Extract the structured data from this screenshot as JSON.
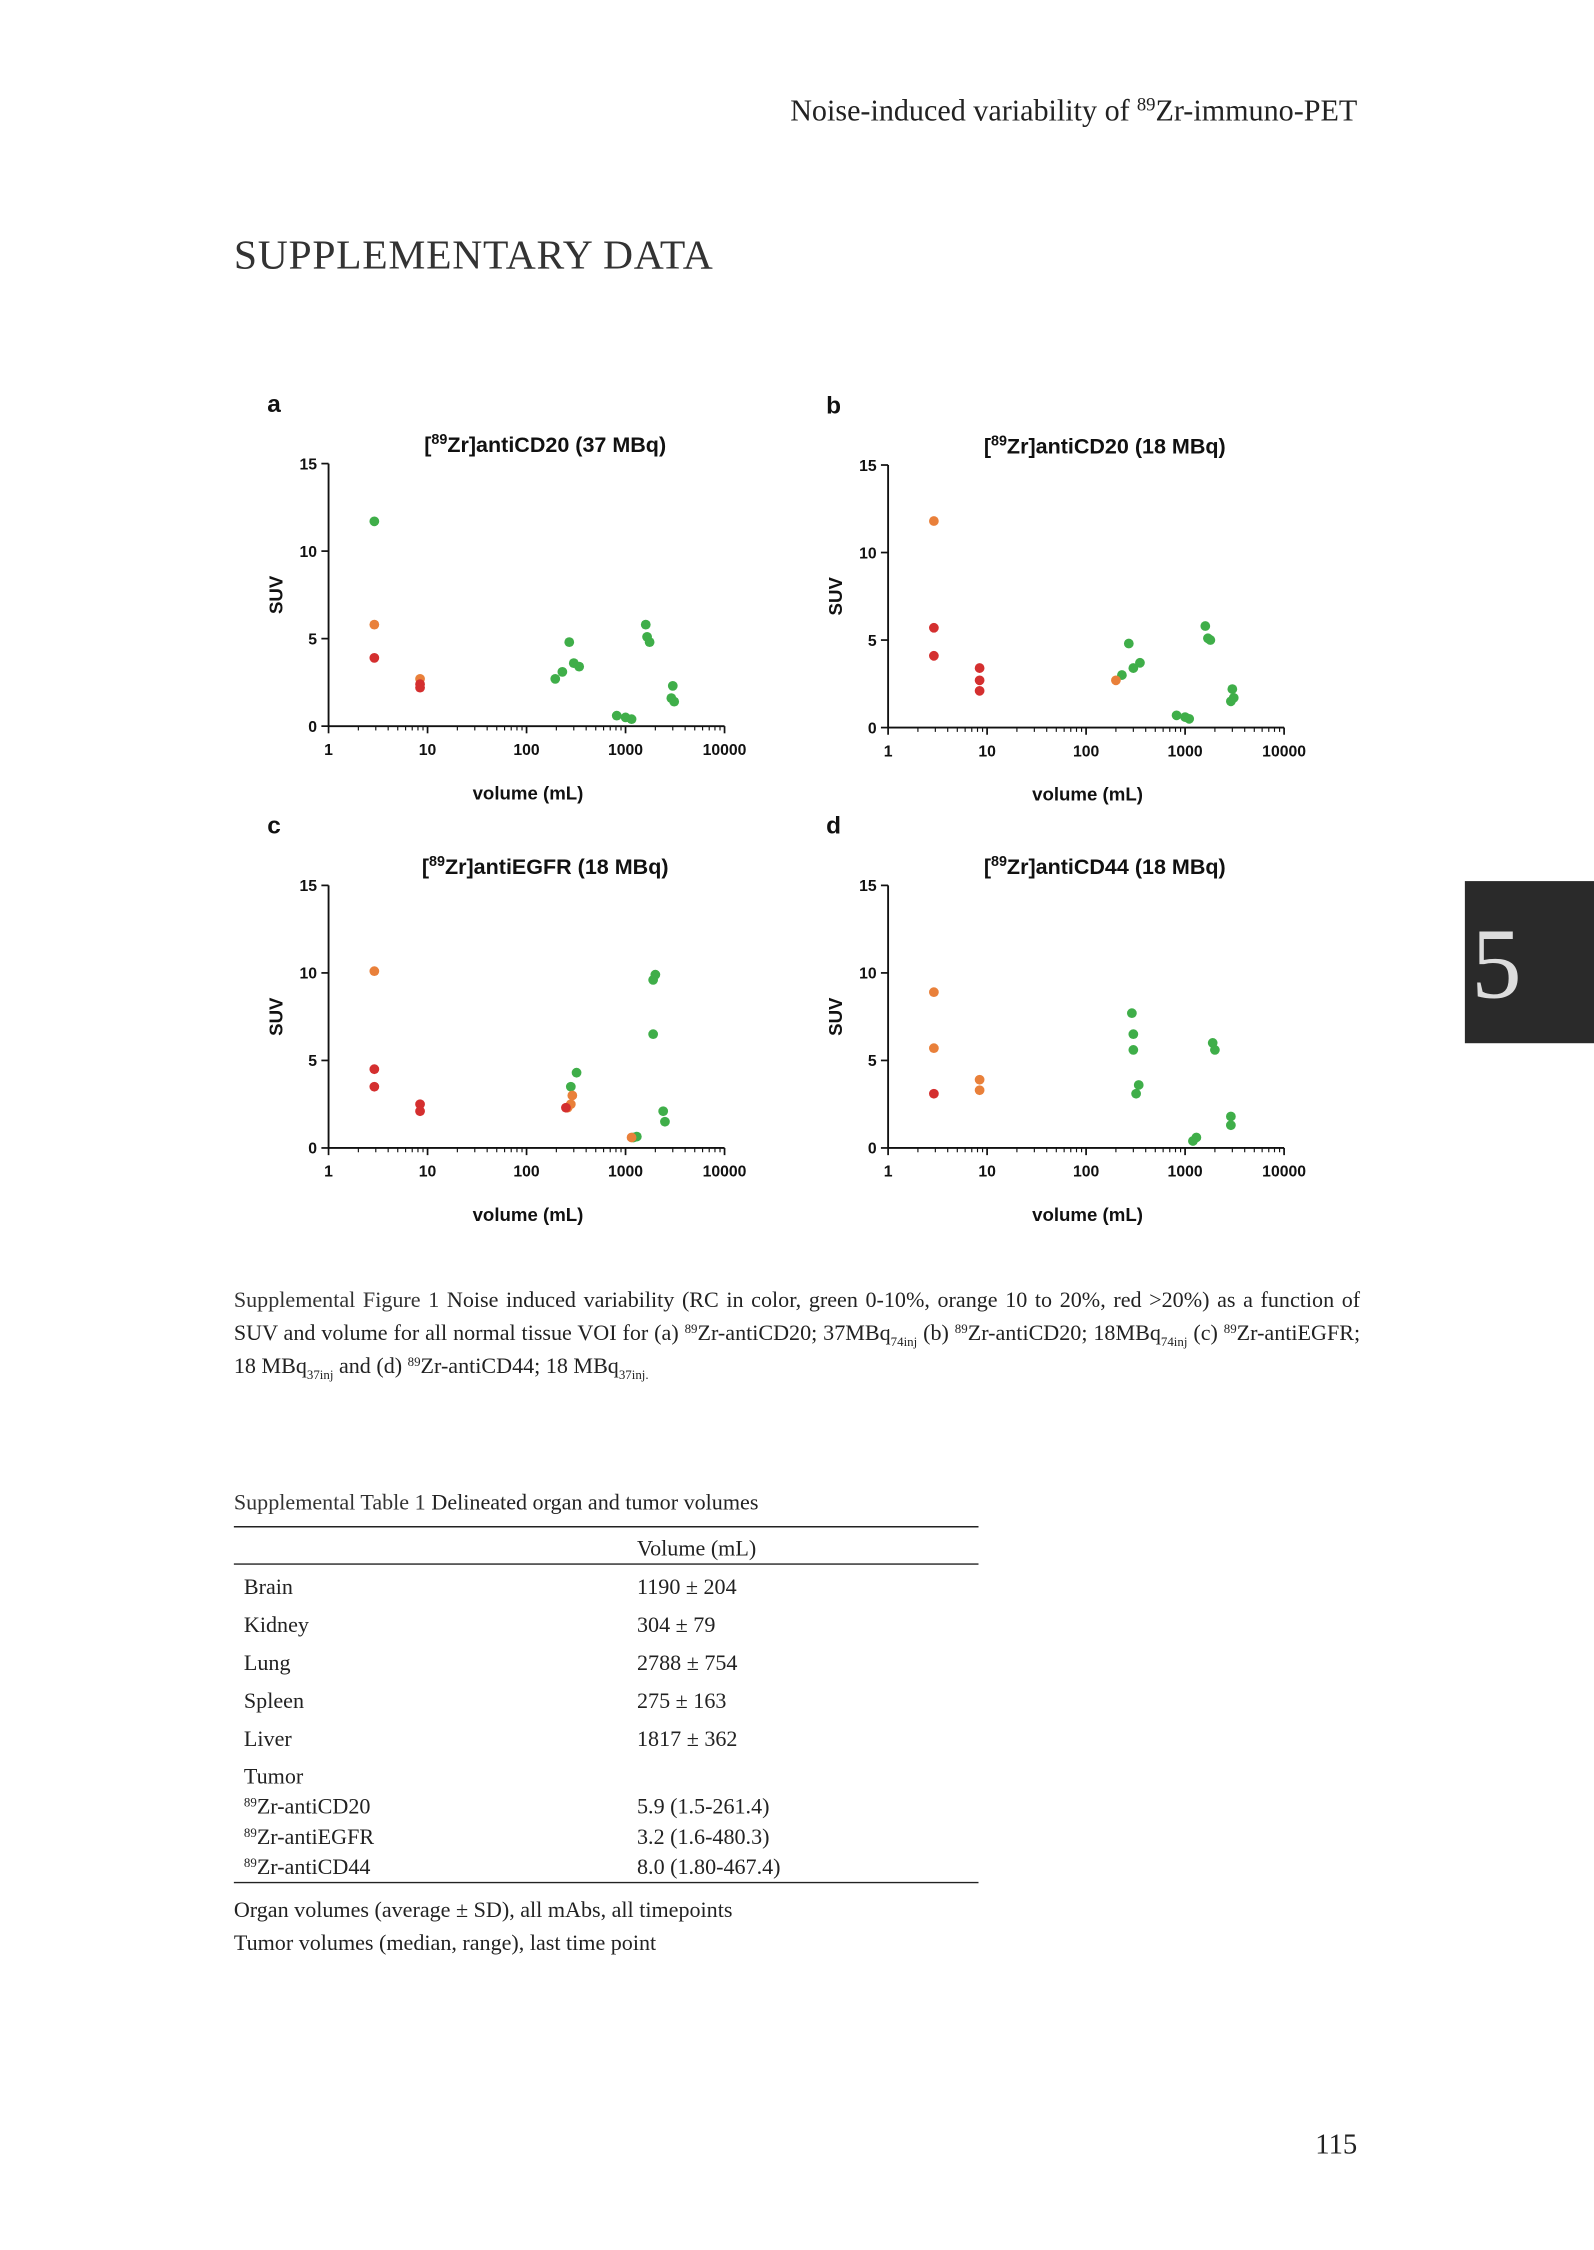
{
  "header": {
    "before": "Noise-induced variability of",
    "sup": "89",
    "after": "Zr-immuno-PET"
  },
  "section_title": "SUPPLEMENTARY DATA",
  "chart_data": [
    {
      "type": "scatter",
      "panel": "a",
      "title_open": "[",
      "title_sup": "89",
      "title_rest": "Zr]antiCD20 (37 MBq)",
      "x_label": "volume (mL)",
      "y_label": "SUV",
      "xlog": true,
      "xlim": [
        1,
        10000
      ],
      "xticks": [
        1,
        10,
        100,
        1000,
        10000
      ],
      "ylim": [
        0,
        15
      ],
      "yticks": [
        0,
        5,
        10,
        15
      ],
      "series": [
        {
          "color": "#3fae49",
          "x": [
            2.9,
            195,
            230,
            270,
            300,
            340,
            815,
            1000,
            1150,
            1600,
            1650,
            1750,
            3000,
            2900,
            3100
          ],
          "values": [
            11.7,
            2.7,
            3.1,
            4.8,
            3.6,
            3.4,
            0.6,
            0.5,
            0.4,
            5.8,
            5.1,
            4.8,
            2.3,
            1.6,
            1.4
          ]
        },
        {
          "color": "#e9803a",
          "x": [
            2.9,
            8.4
          ],
          "values": [
            5.8,
            2.7
          ]
        },
        {
          "color": "#d42f2f",
          "x": [
            2.9,
            8.4,
            8.4
          ],
          "values": [
            3.9,
            2.4,
            2.2
          ]
        }
      ]
    },
    {
      "type": "scatter",
      "panel": "b",
      "title_open": "[",
      "title_sup": "89",
      "title_rest": "Zr]antiCD20 (18 MBq)",
      "x_label": "volume (mL)",
      "y_label": "SUV",
      "xlog": true,
      "xlim": [
        1,
        10000
      ],
      "xticks": [
        1,
        10,
        100,
        1000,
        10000
      ],
      "ylim": [
        0,
        15
      ],
      "yticks": [
        0,
        5,
        10,
        15
      ],
      "series": [
        {
          "color": "#3fae49",
          "x": [
            230,
            270,
            300,
            350,
            820,
            1000,
            1100,
            1600,
            1700,
            1800,
            3000,
            2900,
            3100
          ],
          "values": [
            3.0,
            4.8,
            3.4,
            3.7,
            0.7,
            0.6,
            0.5,
            5.8,
            5.1,
            5.0,
            2.2,
            1.5,
            1.7
          ]
        },
        {
          "color": "#e9803a",
          "x": [
            2.9,
            200
          ],
          "values": [
            11.8,
            2.7
          ]
        },
        {
          "color": "#d42f2f",
          "x": [
            2.9,
            2.9,
            8.4,
            8.4,
            8.4
          ],
          "values": [
            5.7,
            4.1,
            3.4,
            2.7,
            2.1
          ]
        }
      ]
    },
    {
      "type": "scatter",
      "panel": "c",
      "title_open": "[",
      "title_sup": "89",
      "title_rest": "Zr]antiEGFR (18 MBq)",
      "x_label": "volume (mL)",
      "y_label": "SUV",
      "xlog": true,
      "xlim": [
        1,
        10000
      ],
      "xticks": [
        1,
        10,
        100,
        1000,
        10000
      ],
      "ylim": [
        0,
        15
      ],
      "yticks": [
        0,
        5,
        10,
        15
      ],
      "series": [
        {
          "color": "#3fae49",
          "x": [
            280,
            320,
            1200,
            1300,
            1900,
            2000,
            1900,
            2400,
            2500
          ],
          "values": [
            3.5,
            4.3,
            0.6,
            0.65,
            9.6,
            9.9,
            6.5,
            2.1,
            1.5
          ]
        },
        {
          "color": "#e9803a",
          "x": [
            2.9,
            280,
            290,
            260,
            1150
          ],
          "values": [
            10.1,
            2.5,
            3.0,
            2.3,
            0.6
          ]
        },
        {
          "color": "#d42f2f",
          "x": [
            2.9,
            2.9,
            8.4,
            8.4,
            250
          ],
          "values": [
            4.5,
            3.5,
            2.5,
            2.1,
            2.3
          ]
        }
      ]
    },
    {
      "type": "scatter",
      "panel": "d",
      "title_open": "[",
      "title_sup": "89",
      "title_rest": "Zr]antiCD44 (18 MBq)",
      "x_label": "volume (mL)",
      "y_label": "SUV",
      "xlog": true,
      "xlim": [
        1,
        10000
      ],
      "xticks": [
        1,
        10,
        100,
        1000,
        10000
      ],
      "ylim": [
        0,
        15
      ],
      "yticks": [
        0,
        5,
        10,
        15
      ],
      "series": [
        {
          "color": "#3fae49",
          "x": [
            290,
            300,
            300,
            340,
            320,
            1200,
            1300,
            1900,
            2000,
            2900,
            2900
          ],
          "values": [
            7.7,
            6.5,
            5.6,
            3.6,
            3.1,
            0.4,
            0.6,
            6.0,
            5.6,
            1.8,
            1.3
          ]
        },
        {
          "color": "#e9803a",
          "x": [
            2.9,
            2.9,
            8.4,
            8.4
          ],
          "values": [
            8.9,
            5.7,
            3.9,
            3.3
          ]
        },
        {
          "color": "#d42f2f",
          "x": [
            2.9
          ],
          "values": [
            3.1
          ]
        }
      ]
    }
  ],
  "caption": {
    "label": "Supplemental Figure 1",
    "runs": [
      {
        "text": "Noise induced variability (RC in color, green 0-10%, orange 10 to 20%, red >20%) as a function of SUV and volume for all normal tissue VOI for (a) "
      },
      {
        "sup": "89"
      },
      {
        "text": "Zr-antiCD20; 37MBq"
      },
      {
        "sub": "74inj"
      },
      {
        "text": " (b) "
      },
      {
        "sup": "89"
      },
      {
        "text": "Zr-antiCD20; 18MBq"
      },
      {
        "sub": "74inj"
      },
      {
        "text": " (c) "
      },
      {
        "sup": "89"
      },
      {
        "text": "Zr-antiEGFR; 18 MBq"
      },
      {
        "sub": "37inj"
      },
      {
        "text": " and (d) "
      },
      {
        "sup": "89"
      },
      {
        "text": "Zr-antiCD44; 18 MBq"
      },
      {
        "sub": "37inj."
      }
    ]
  },
  "table": {
    "label": "Supplemental Table 1",
    "title": "Delineated organ and tumor volumes",
    "column": "Volume (mL)",
    "rows": [
      [
        "Brain",
        "1190 ± 204"
      ],
      [
        "Kidney",
        "304 ± 79"
      ],
      [
        "Lung",
        "2788 ± 754"
      ],
      [
        "Spleen",
        "275 ± 163"
      ],
      [
        "Liver",
        "1817 ± 362"
      ]
    ],
    "group": "Tumor",
    "subrows": [
      {
        "sup": "89",
        "name": "Zr-antiCD20",
        "value": "5.9 (1.5-261.4)"
      },
      {
        "sup": "89",
        "name": "Zr-antiEGFR",
        "value": "3.2 (1.6-480.3)"
      },
      {
        "sup": "89",
        "name": "Zr-antiCD44",
        "value": "8.0 (1.80-467.4)"
      }
    ]
  },
  "notes": [
    "Organ volumes (average ± SD), all mAbs, all timepoints",
    "Tumor volumes (median, range), last time point"
  ],
  "page_number": "115",
  "chapter_tab": "5"
}
